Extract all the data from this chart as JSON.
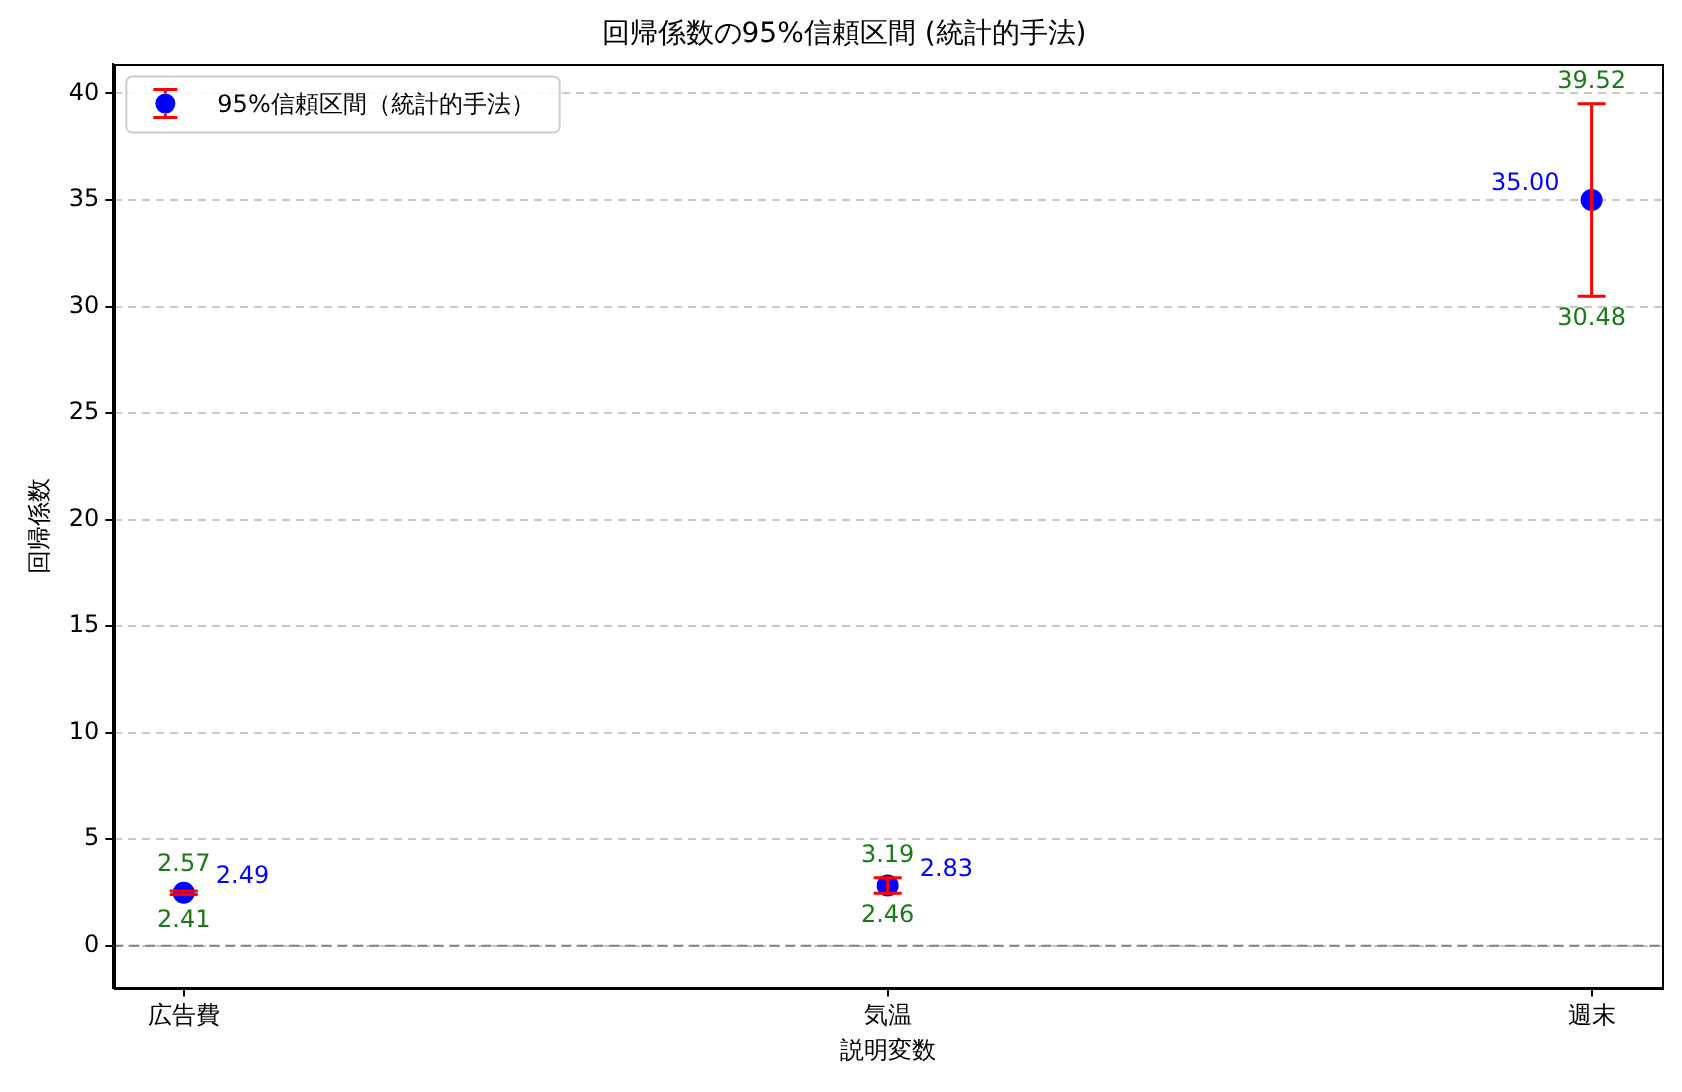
{
  "chart_data": {
    "type": "scatter",
    "title": "回帰係数の95%信頼区間 (統計的手法)",
    "xlabel": "説明変数",
    "ylabel": "回帰係数",
    "categories": [
      "広告費",
      "気温",
      "週末"
    ],
    "series": [
      {
        "name": "95%信頼区間（統計的手法）",
        "color": "#0000ff",
        "values": [
          2.49,
          2.83,
          35.0
        ],
        "errors": [
          [
            2.41,
            2.57
          ],
          [
            2.46,
            3.19
          ],
          [
            30.48,
            39.52
          ]
        ],
        "value_labels": [
          "2.49",
          "2.83",
          "35.00"
        ]
      }
    ],
    "ylim": [
      -2,
      41.4
    ],
    "yticks": [
      0,
      5,
      10,
      15,
      20,
      25,
      30,
      35,
      40
    ],
    "ref_lines": [
      {
        "axis": "y",
        "value": 0,
        "color": "#808080",
        "line_style": "dashed"
      }
    ],
    "annotations": [
      {
        "text": "2.57",
        "x": "広告費",
        "y": 2.57
      },
      {
        "text": "2.41",
        "x": "広告費",
        "y": 2.41
      },
      {
        "text": "3.19",
        "x": "気温",
        "y": 3.19
      },
      {
        "text": "2.46",
        "x": "気温",
        "y": 2.46
      },
      {
        "text": "39.52",
        "x": "週末",
        "y": 39.52
      },
      {
        "text": "30.48",
        "x": "週末",
        "y": 30.48
      }
    ],
    "grid": "y",
    "legend": "top left",
    "marker": "circle"
  }
}
